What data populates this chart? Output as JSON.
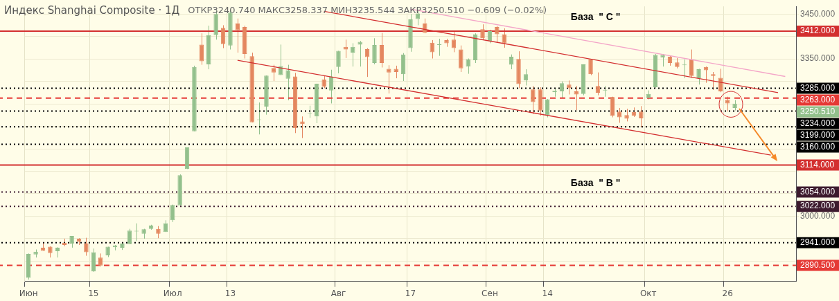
{
  "chart_data": {
    "type": "candlestick",
    "title": "Индекс Shanghai Composite · 1Д",
    "subtitle": "ОТКР3240.740 МАКС3258.337 МИН3235.544 ЗАКР3250.510 −0.609 (−0.02%)",
    "categories": [
      "Июн",
      null,
      null,
      null,
      null,
      null,
      null,
      null,
      null,
      "15",
      null,
      null,
      null,
      null,
      null,
      null,
      null,
      null,
      null,
      null,
      "Июл",
      null,
      null,
      null,
      null,
      null,
      null,
      null,
      "13",
      null,
      null,
      null,
      null,
      null,
      null,
      null,
      null,
      null,
      null,
      null,
      null,
      null,
      null,
      "Авг",
      null,
      null,
      null,
      null,
      null,
      null,
      null,
      null,
      null,
      "17",
      null,
      null,
      null,
      null,
      null,
      null,
      null,
      null,
      null,
      null,
      "Сен",
      null,
      null,
      null,
      null,
      null,
      null,
      null,
      "14",
      null,
      null,
      null,
      null,
      null,
      null,
      null,
      null,
      null,
      null,
      null,
      null,
      null,
      "Окт",
      null,
      null,
      null,
      null,
      null,
      null,
      null,
      null,
      null,
      null,
      "26",
      null,
      null,
      null,
      null,
      null,
      null,
      null,
      null,
      null
    ],
    "ohlc": [
      [
        2863,
        2917,
        2859,
        2916
      ],
      [
        2915,
        2926,
        2908,
        2921
      ],
      [
        2930,
        2942,
        2923,
        2923
      ],
      [
        2932,
        2933,
        2908,
        2918
      ],
      [
        2922,
        2931,
        2908,
        2930
      ],
      [
        2941,
        2950,
        2933,
        2936
      ],
      [
        2939,
        2956,
        2930,
        2956
      ],
      [
        2950,
        2951,
        2936,
        2943
      ],
      [
        2939,
        2952,
        2912,
        2920
      ],
      [
        2877,
        2928,
        2876,
        2920
      ],
      [
        2908,
        2917,
        2888,
        2890
      ],
      [
        2913,
        2932,
        2909,
        2932
      ],
      [
        2931,
        2936,
        2924,
        2935
      ],
      [
        2930,
        2940,
        2925,
        2939
      ],
      [
        2938,
        2972,
        2938,
        2968
      ],
      [
        2966,
        2984,
        2945,
        2966
      ],
      [
        2961,
        2972,
        2950,
        2971
      ],
      [
        2972,
        2981,
        2970,
        2979
      ],
      [
        2972,
        2978,
        2951,
        2961
      ],
      [
        2965,
        2991,
        2965,
        2984
      ],
      [
        2991,
        3026,
        2987,
        3025
      ],
      [
        3024,
        3093,
        3024,
        3091
      ],
      [
        3105,
        3153,
        3105,
        3153
      ],
      [
        3189,
        3335,
        3189,
        3332
      ],
      [
        3382,
        3407,
        3337,
        3345
      ],
      [
        3338,
        3424,
        3327,
        3403
      ],
      [
        3403,
        3458,
        3393,
        3450
      ],
      [
        3419,
        3425,
        3374,
        3383
      ],
      [
        3380,
        3460,
        3371,
        3453
      ],
      [
        3429,
        3440,
        3364,
        3414
      ],
      [
        3421,
        3424,
        3351,
        3361
      ],
      [
        3356,
        3364,
        3209,
        3209
      ],
      [
        3214,
        3253,
        3182,
        3214
      ],
      [
        3244,
        3313,
        3226,
        3313
      ],
      [
        3330,
        3337,
        3301,
        3320
      ],
      [
        3314,
        3382,
        3314,
        3334
      ],
      [
        3306,
        3337,
        3258,
        3325
      ],
      [
        3311,
        3319,
        3185,
        3196
      ],
      [
        3211,
        3222,
        3174,
        3205
      ],
      [
        3228,
        3246,
        3219,
        3228
      ],
      [
        3222,
        3295,
        3207,
        3295
      ],
      [
        3304,
        3313,
        3285,
        3288
      ],
      [
        3280,
        3326,
        3251,
        3311
      ],
      [
        3332,
        3368,
        3318,
        3368
      ],
      [
        3377,
        3393,
        3352,
        3371
      ],
      [
        3364,
        3385,
        3333,
        3377
      ],
      [
        3382,
        3390,
        3333,
        3388
      ],
      [
        3372,
        3374,
        3310,
        3354
      ],
      [
        3341,
        3396,
        3338,
        3381
      ],
      [
        3381,
        3408,
        3331,
        3341
      ],
      [
        3328,
        3336,
        3273,
        3320
      ],
      [
        3328,
        3335,
        3307,
        3321
      ],
      [
        3316,
        3363,
        3301,
        3360
      ],
      [
        3374,
        3450,
        3366,
        3438
      ],
      [
        3439,
        3458,
        3425,
        3451
      ],
      [
        3429,
        3440,
        3407,
        3408
      ],
      [
        3386,
        3392,
        3351,
        3365
      ],
      [
        3381,
        3395,
        3357,
        3381
      ],
      [
        3392,
        3395,
        3377,
        3385
      ],
      [
        3393,
        3410,
        3365,
        3374
      ],
      [
        3371,
        3380,
        3321,
        3329
      ],
      [
        3333,
        3351,
        3317,
        3349
      ],
      [
        3347,
        3407,
        3341,
        3405
      ],
      [
        3416,
        3427,
        3393,
        3396
      ],
      [
        3390,
        3415,
        3385,
        3412
      ],
      [
        3421,
        3423,
        3386,
        3405
      ],
      [
        3405,
        3418,
        3375,
        3385
      ],
      [
        3337,
        3360,
        3327,
        3355
      ],
      [
        3350,
        3367,
        3285,
        3294
      ],
      [
        3302,
        3327,
        3291,
        3316
      ],
      [
        3282,
        3290,
        3227,
        3254
      ],
      [
        3282,
        3287,
        3224,
        3235
      ],
      [
        3225,
        3261,
        3220,
        3260
      ],
      [
        3276,
        3284,
        3266,
        3279
      ],
      [
        3278,
        3300,
        3264,
        3296
      ],
      [
        3293,
        3302,
        3271,
        3285
      ],
      [
        3278,
        3290,
        3236,
        3271
      ],
      [
        3272,
        3338,
        3269,
        3338
      ],
      [
        3350,
        3350,
        3314,
        3316
      ],
      [
        3290,
        3320,
        3269,
        3275
      ],
      [
        3280,
        3290,
        3266,
        3280
      ],
      [
        3265,
        3266,
        3220,
        3224
      ],
      [
        3233,
        3241,
        3208,
        3220
      ],
      [
        3225,
        3239,
        3211,
        3217
      ],
      [
        3232,
        3242,
        3221,
        3224
      ],
      [
        3233,
        3245,
        3198,
        3218
      ],
      [
        3263,
        3280,
        3260,
        3272
      ],
      [
        3287,
        3361,
        3286,
        3359
      ],
      [
        3353,
        3361,
        3333,
        3359
      ],
      [
        3355,
        3357,
        3335,
        3341
      ],
      [
        3342,
        3352,
        3329,
        3332
      ],
      [
        3336,
        3349,
        3307,
        3336
      ],
      [
        3349,
        3371,
        3308,
        3312
      ],
      [
        3307,
        3328,
        3293,
        3327
      ],
      [
        3332,
        3333,
        3297,
        3325
      ],
      [
        3316,
        3321,
        3281,
        3312
      ],
      [
        3308,
        3328,
        3276,
        3278
      ],
      [
        3259,
        3266,
        3233,
        3251
      ],
      [
        3240.74,
        3258.337,
        3235.544,
        3250.51
      ],
      null,
      null,
      null,
      null,
      null,
      null,
      null,
      null
    ],
    "colors": [
      "#93c08c",
      "#93c08c",
      "#e4875f",
      "#e4875f",
      "#93c08c",
      "#e4875f",
      "#93c08c",
      "#e4875f",
      "#e4875f",
      "#93c08c",
      "#e4875f",
      "#93c08c",
      "#93c08c",
      "#93c08c",
      "#93c08c",
      "#93c08c",
      "#93c08c",
      "#93c08c",
      "#e4875f",
      "#93c08c",
      "#93c08c",
      "#93c08c",
      "#93c08c",
      "#93c08c",
      "#e4875f",
      "#93c08c",
      "#93c08c",
      "#e4875f",
      "#93c08c",
      "#e4875f",
      "#e4875f",
      "#e4875f",
      "#93c08c",
      "#93c08c",
      "#e4875f",
      "#93c08c",
      "#93c08c",
      "#e4875f",
      "#e4875f",
      "#93c08c",
      "#93c08c",
      "#e4875f",
      "#93c08c",
      "#93c08c",
      "#e4875f",
      "#93c08c",
      "#93c08c",
      "#e4875f",
      "#93c08c",
      "#e4875f",
      "#e4875f",
      "#e4875f",
      "#93c08c",
      "#93c08c",
      "#93c08c",
      "#e4875f",
      "#e4875f",
      "#93c08c",
      "#e4875f",
      "#e4875f",
      "#e4875f",
      "#93c08c",
      "#93c08c",
      "#e4875f",
      "#93c08c",
      "#e4875f",
      "#e4875f",
      "#93c08c",
      "#e4875f",
      "#93c08c",
      "#e4875f",
      "#e4875f",
      "#93c08c",
      "#93c08c",
      "#93c08c",
      "#e4875f",
      "#e4875f",
      "#93c08c",
      "#e4875f",
      "#e4875f",
      "#93c08c",
      "#e4875f",
      "#e4875f",
      "#e4875f",
      "#e4875f",
      "#e4875f",
      "#93c08c",
      "#93c08c",
      "#93c08c",
      "#e4875f",
      "#e4875f",
      "#93c08c",
      "#e4875f",
      "#93c08c",
      "#e4875f",
      "#e4875f",
      "#e4875f",
      "#e4875f",
      "#93c08c",
      null,
      null,
      null,
      null,
      null,
      null,
      null,
      null
    ],
    "series": [
      {
        "type": "line",
        "color": "#f4a6c8",
        "values": [
          null,
          null,
          null,
          null,
          null,
          null,
          null,
          null,
          null,
          null,
          null,
          null,
          null,
          null,
          null,
          null,
          null,
          null,
          null,
          null,
          null,
          null,
          null,
          null,
          null,
          null,
          null,
          null,
          null,
          null,
          null,
          null,
          null,
          null,
          null,
          null,
          null,
          null,
          null,
          null,
          null,
          null,
          null,
          null,
          null,
          null,
          null,
          null,
          null,
          null,
          null,
          null,
          null,
          3461,
          null,
          null,
          null,
          null,
          null,
          null,
          null,
          null,
          null,
          null,
          null,
          null,
          null,
          null,
          null,
          null,
          null,
          null,
          null,
          null,
          null,
          null,
          null,
          null,
          null,
          null,
          null,
          null,
          null,
          null,
          null,
          null,
          null,
          null,
          null,
          null,
          null,
          null,
          null,
          null,
          null,
          null,
          null,
          null,
          null,
          null,
          null,
          null,
          null,
          null,
          null,
          3311,
          null
        ]
      },
      {
        "type": "line",
        "color": "#d32f2f",
        "values": [
          null,
          null,
          null,
          null,
          null,
          null,
          null,
          null,
          null,
          null,
          null,
          null,
          null,
          null,
          null,
          null,
          null,
          null,
          null,
          null,
          null,
          null,
          null,
          null,
          null,
          null,
          null,
          null,
          null,
          null,
          null,
          null,
          null,
          null,
          null,
          null,
          null,
          null,
          null,
          null,
          null,
          3456,
          null,
          null,
          null,
          null,
          null,
          null,
          null,
          null,
          null,
          null,
          null,
          null,
          null,
          null,
          null,
          null,
          null,
          null,
          null,
          null,
          null,
          null,
          null,
          null,
          null,
          null,
          null,
          null,
          null,
          null,
          null,
          null,
          null,
          null,
          null,
          null,
          null,
          null,
          null,
          null,
          null,
          null,
          null,
          null,
          null,
          null,
          null,
          null,
          null,
          null,
          null,
          null,
          null,
          null,
          null,
          null,
          null,
          null,
          null,
          null,
          null,
          null,
          3275,
          null,
          null
        ]
      },
      {
        "type": "line",
        "color": "#d32f2f",
        "values": [
          null,
          null,
          null,
          null,
          null,
          null,
          null,
          null,
          null,
          null,
          null,
          null,
          null,
          null,
          null,
          null,
          null,
          null,
          null,
          null,
          null,
          null,
          null,
          null,
          null,
          null,
          null,
          null,
          null,
          3347,
          null,
          null,
          null,
          null,
          null,
          null,
          null,
          null,
          null,
          null,
          null,
          null,
          null,
          null,
          null,
          null,
          null,
          null,
          null,
          null,
          null,
          null,
          null,
          null,
          null,
          null,
          null,
          null,
          null,
          null,
          null,
          null,
          null,
          null,
          null,
          null,
          null,
          null,
          null,
          null,
          null,
          null,
          null,
          null,
          null,
          null,
          null,
          null,
          null,
          null,
          null,
          null,
          null,
          null,
          null,
          null,
          null,
          null,
          null,
          null,
          null,
          null,
          null,
          null,
          null,
          null,
          null,
          null,
          null,
          null,
          null,
          null,
          null,
          3136,
          null,
          null,
          null
        ]
      }
    ],
    "ylim": [
      2855,
      3467
    ],
    "yticks": [
      {
        "value": 2900,
        "label": null
      },
      {
        "value": 2950,
        "label": null
      },
      {
        "value": 3000,
        "label": "3000.000"
      },
      {
        "value": 3050,
        "label": null
      },
      {
        "value": 3100,
        "label": null
      },
      {
        "value": 3150,
        "label": null
      },
      {
        "value": 3200,
        "label": null
      },
      {
        "value": 3250,
        "label": null
      },
      {
        "value": 3300,
        "label": null
      },
      {
        "value": 3350,
        "label": "3350.000"
      },
      {
        "value": 3400,
        "label": null
      },
      {
        "value": 3450,
        "label": "3450.000"
      }
    ],
    "ref_lines": [
      {
        "axis": "y",
        "value": 3412,
        "label": "3412.000",
        "color": "#d32f2f",
        "line_style": "solid"
      },
      {
        "axis": "y",
        "value": 3285,
        "label": "3285.000",
        "color": "#000000",
        "line_style": "dotted"
      },
      {
        "axis": "y",
        "value": 3263,
        "label": "3263.000",
        "color": "#e53935",
        "line_style": "dashed"
      },
      {
        "axis": "y",
        "value": 3234,
        "label": "3234.000",
        "color": "#000000",
        "line_style": "dotted"
      },
      {
        "axis": "y",
        "value": 3199,
        "label": "3199.000",
        "color": "#000000",
        "line_style": "dotted"
      },
      {
        "axis": "y",
        "value": 3160,
        "label": "3160.000",
        "color": "#000000",
        "line_style": "dotted"
      },
      {
        "axis": "y",
        "value": 3114,
        "label": "3114.000",
        "color": "#d32f2f",
        "line_style": "solid"
      },
      {
        "axis": "y",
        "value": 3054,
        "label": "3054.000",
        "color": "#3d1a2e",
        "line_style": "dotted"
      },
      {
        "axis": "y",
        "value": 3022,
        "label": "3022.000",
        "color": "#3d1a2e",
        "line_style": "dotted"
      },
      {
        "axis": "y",
        "value": 2941,
        "label": "2941.000",
        "color": "#000000",
        "line_style": "dotted"
      },
      {
        "axis": "y",
        "value": 2890.5,
        "label": "2890.500",
        "color": "#e53935",
        "line_style": "dashed"
      }
    ],
    "annotations": [
      "База  \" C \"",
      "База  \" B \"",
      "3250.510"
    ],
    "grid": true,
    "legend": false
  }
}
